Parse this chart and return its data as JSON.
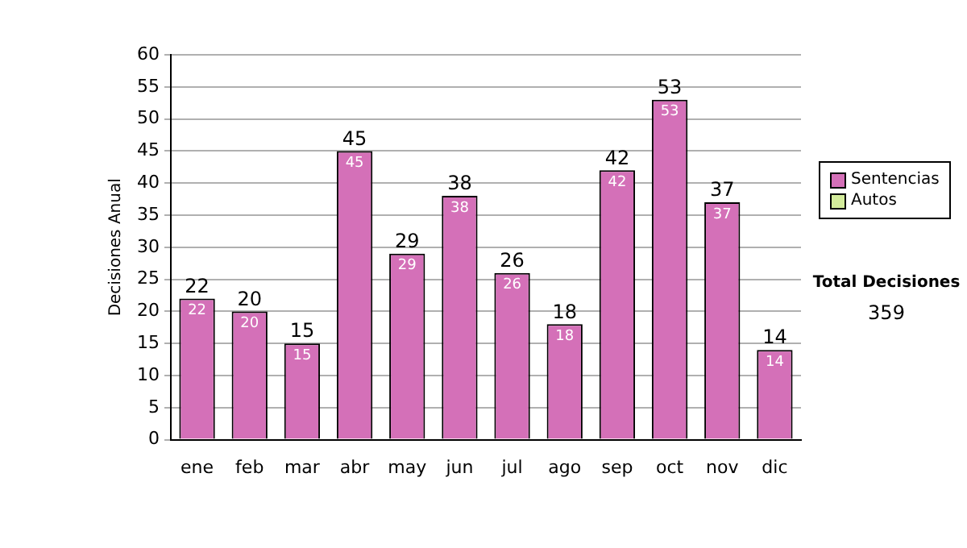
{
  "chart_data": {
    "type": "bar",
    "ylabel": "Decisiones Anual",
    "categories": [
      "ene",
      "feb",
      "mar",
      "abr",
      "may",
      "jun",
      "jul",
      "ago",
      "sep",
      "oct",
      "nov",
      "dic"
    ],
    "series": [
      {
        "name": "Sentencias",
        "color": "#d470b8",
        "values": [
          22,
          20,
          15,
          45,
          29,
          38,
          26,
          18,
          42,
          53,
          37,
          14
        ],
        "value_labels": [
          "22",
          "20",
          "15",
          "45",
          "29",
          "38",
          "26",
          "18",
          "42",
          "53",
          "37",
          "14"
        ]
      },
      {
        "name": "Autos",
        "color": "#d4ec9c",
        "values": [
          0,
          0,
          0,
          0,
          0,
          0,
          0,
          0,
          0,
          0,
          0,
          0
        ]
      }
    ],
    "stacked": true,
    "totals": [
      "22",
      "20",
      "15",
      "45",
      "29",
      "38",
      "26",
      "18",
      "42",
      "53",
      "37",
      "14"
    ],
    "ylim": [
      0,
      60
    ],
    "yticks": [
      0,
      5,
      10,
      15,
      20,
      25,
      30,
      35,
      40,
      45,
      50,
      55,
      60
    ],
    "grid": "y",
    "legend": "right",
    "annotations": [
      "Total Decisiones",
      "359"
    ]
  }
}
